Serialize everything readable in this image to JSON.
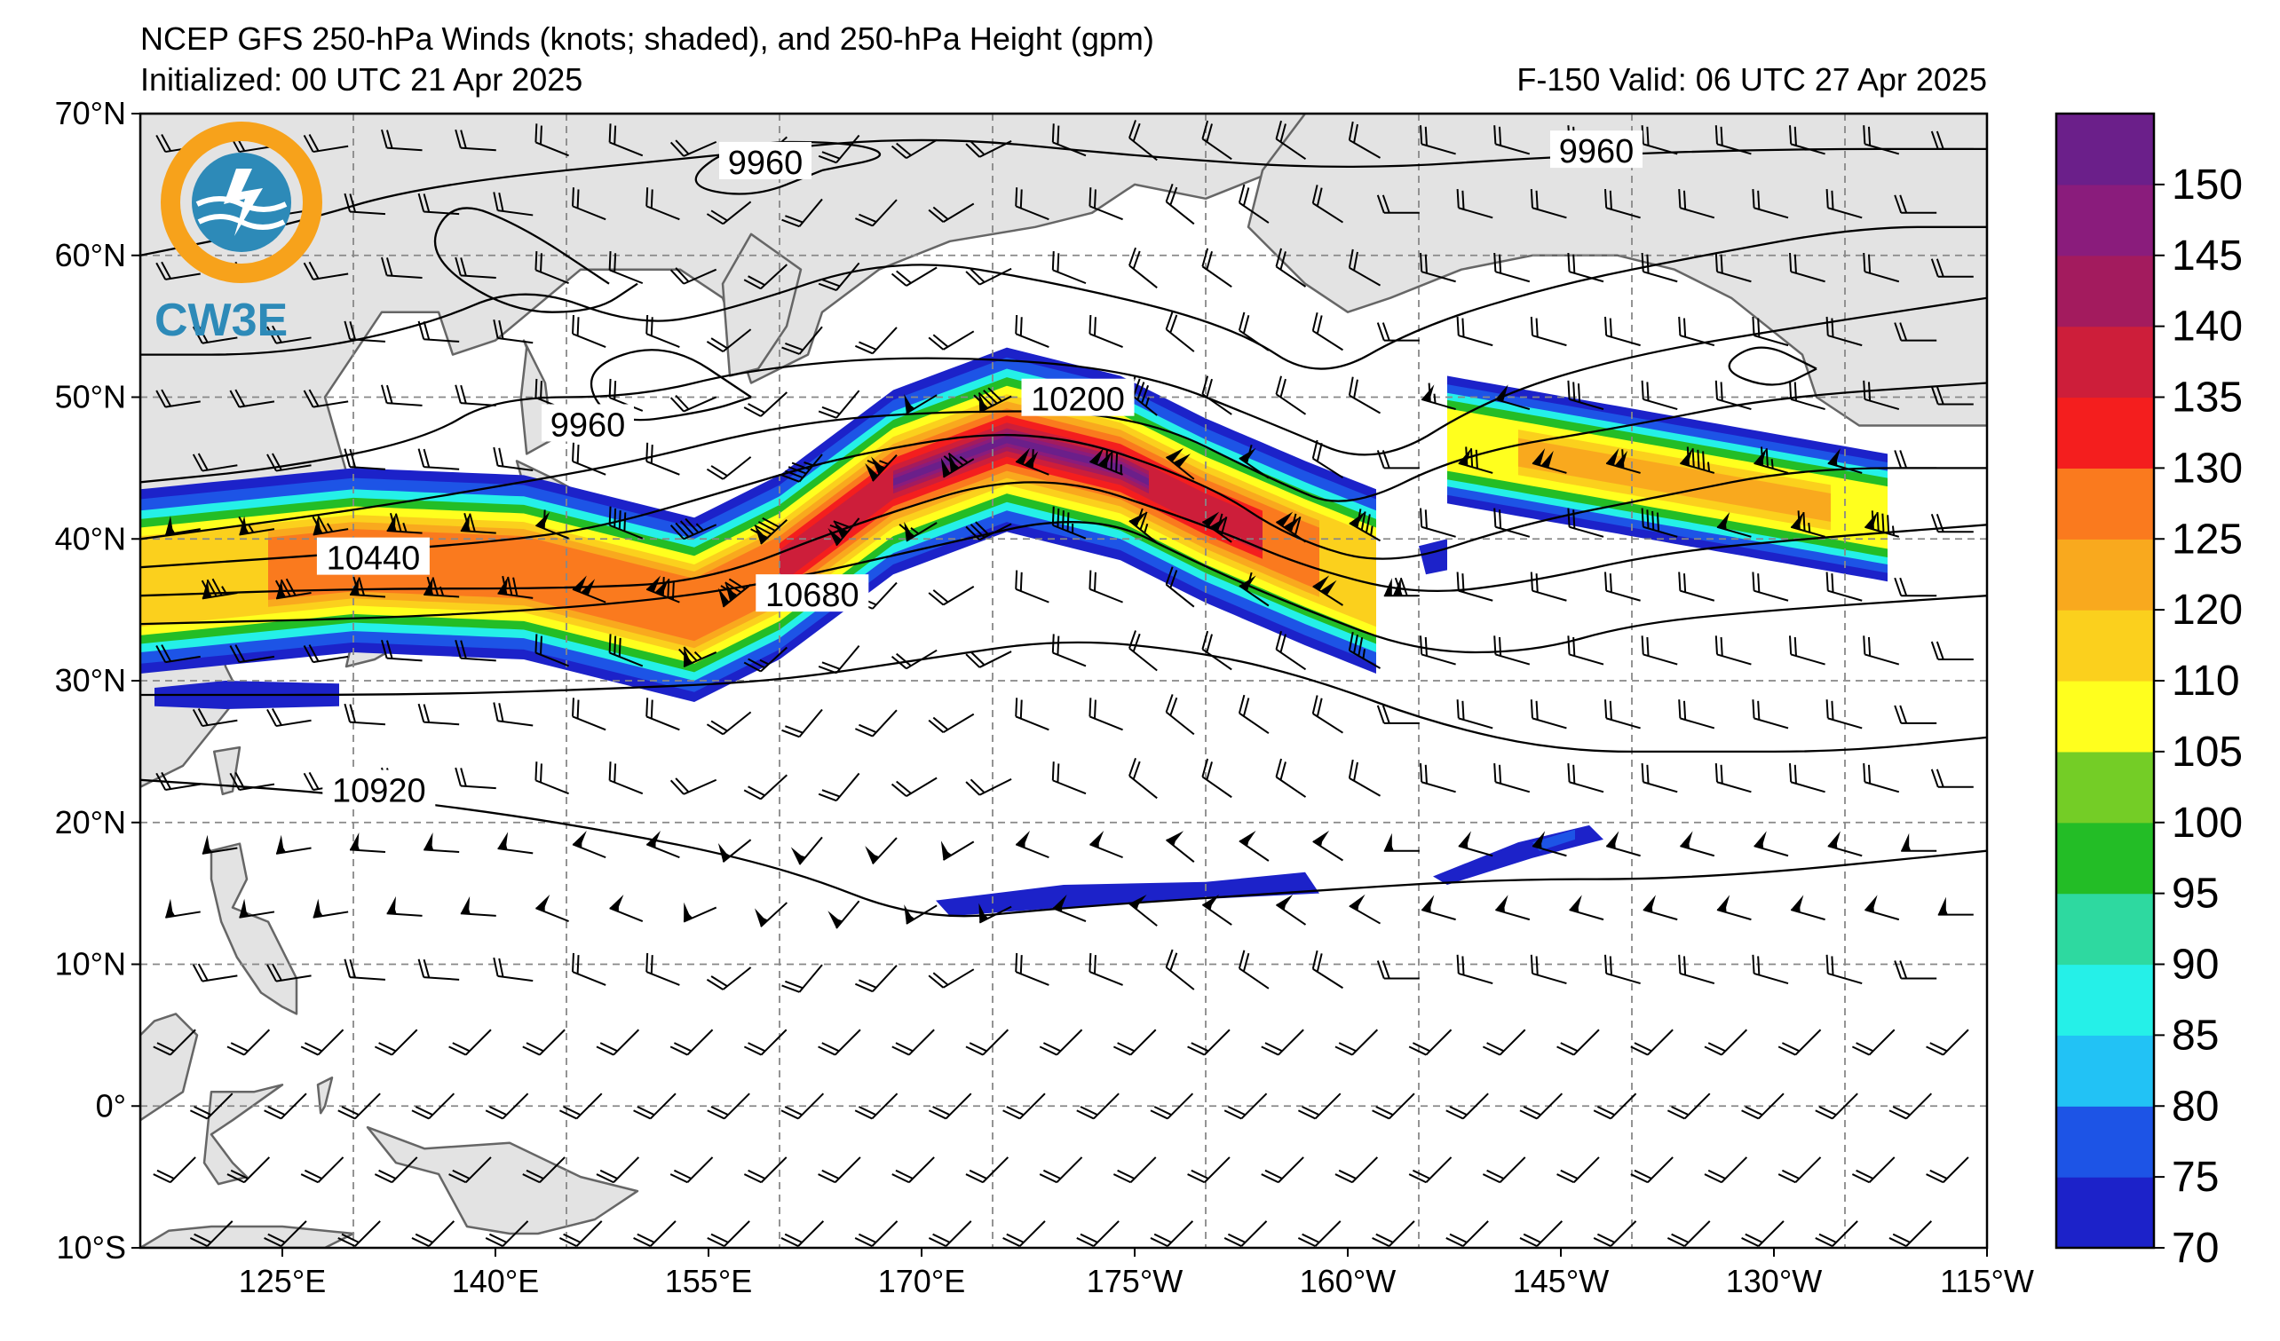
{
  "header": {
    "title": "NCEP GFS 250-hPa Winds (knots; shaded), and 250-hPa Height (gpm)",
    "initialized": "Initialized: 00 UTC 21 Apr 2025",
    "valid": "F-150  Valid: 06 UTC 27 Apr 2025"
  },
  "logo": {
    "text": "CW3E",
    "colors": {
      "orange": "#F7A21B",
      "blue": "#2D8AB8"
    }
  },
  "map": {
    "lon_range": [
      115,
      245
    ],
    "lat_range": [
      -10,
      70
    ],
    "lon_ticks": [
      "125°E",
      "140°E",
      "155°E",
      "170°E",
      "175°W",
      "160°W",
      "145°W",
      "130°W",
      "115°W"
    ],
    "lat_ticks": [
      "70°N",
      "60°N",
      "50°N",
      "40°N",
      "30°N",
      "20°N",
      "10°N",
      "0°",
      "10°S"
    ],
    "land_color": "#e3e3e3",
    "coast_color": "#666666",
    "contour_labels": [
      {
        "text": "9960",
        "lon": 159,
        "lat": 66.5
      },
      {
        "text": "9960",
        "lon": 217.5,
        "lat": 67.3
      },
      {
        "text": "9960",
        "lon": 146.5,
        "lat": 48
      },
      {
        "text": "10200",
        "lon": 181,
        "lat": 49.8
      },
      {
        "text": "10440",
        "lon": 131.4,
        "lat": 38.6
      },
      {
        "text": "10680",
        "lon": 162.3,
        "lat": 36
      },
      {
        "text": "10920",
        "lon": 131.8,
        "lat": 22.2
      }
    ]
  },
  "colorbar": {
    "levels": [
      70,
      75,
      80,
      85,
      90,
      95,
      100,
      105,
      110,
      120,
      125,
      130,
      135,
      140,
      145,
      150,
      155
    ],
    "tick_labels": [
      "70",
      "75",
      "80",
      "85",
      "90",
      "95",
      "100",
      "105",
      "110",
      "120",
      "125",
      "130",
      "135",
      "140",
      "145",
      "150"
    ],
    "colors": [
      "#1c22c9",
      "#1d54e6",
      "#22c2f5",
      "#25f0e8",
      "#2ed9a0",
      "#23bd26",
      "#74cd26",
      "#ffff1e",
      "#fbd01d",
      "#f9a91e",
      "#fa7a1e",
      "#f41e1e",
      "#cd1e3a",
      "#a31b5e",
      "#8a1c7c",
      "#6b1f8a"
    ]
  }
}
